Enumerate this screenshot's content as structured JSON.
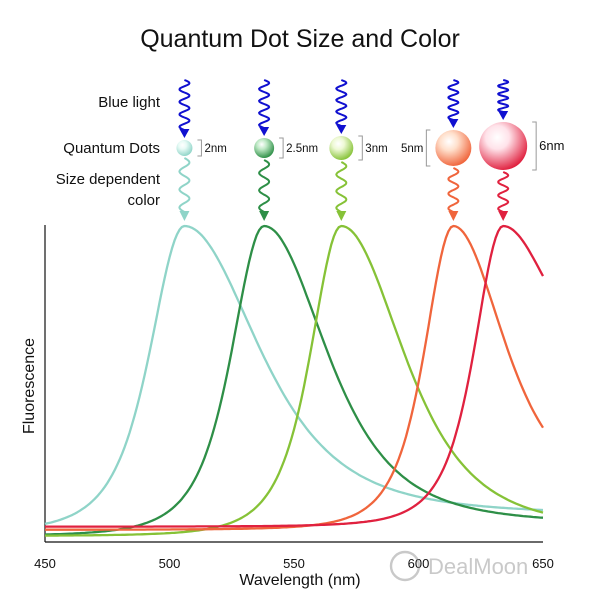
{
  "title": "Quantum Dot Size and Color",
  "labels": {
    "blue_light": "Blue light",
    "quantum_dots": "Quantum Dots",
    "size_dependent_1": "Size dependent",
    "size_dependent_2": "color"
  },
  "dots": [
    {
      "size_label": "2nm",
      "color": "#8fd4c8",
      "light": "#e8fbf6"
    },
    {
      "size_label": "2.5nm",
      "color": "#2e8f47",
      "light": "#bfe9c6"
    },
    {
      "size_label": "3nm",
      "color": "#86c237",
      "light": "#eef9d5"
    },
    {
      "size_label": "5nm",
      "color": "#f0653c",
      "light": "#ffe0cc"
    },
    {
      "size_label": "6nm",
      "color": "#e0213f",
      "light": "#ffe3ea"
    }
  ],
  "colors": {
    "excitation": "#1010d0",
    "axis": "#111111",
    "bracket": "#999999"
  },
  "chart_data": {
    "type": "line",
    "xlabel": "Wavelength (nm)",
    "ylabel": "Fluorescence",
    "xlim": [
      450,
      650
    ],
    "xticks": [
      "450",
      "500",
      "550",
      "600",
      "650"
    ],
    "series": [
      {
        "peak": 506,
        "width_left": 18,
        "width_right": 38,
        "baseline_left": 0.01,
        "baseline_right": 0.07,
        "color": "#8fd4c8"
      },
      {
        "peak": 538,
        "width_left": 17,
        "width_right": 32,
        "baseline_left": 0.0,
        "baseline_right": 0.04,
        "color": "#2e8f47"
      },
      {
        "peak": 569,
        "width_left": 16,
        "width_right": 32,
        "baseline_left": 0.0,
        "baseline_right": 0.02,
        "color": "#86c237"
      },
      {
        "peak": 614,
        "width_left": 15,
        "width_right": 26,
        "baseline_left": 0.02,
        "baseline_right": 0.12,
        "color": "#f0653c"
      },
      {
        "peak": 634,
        "width_left": 15,
        "width_right": 25,
        "baseline_left": 0.03,
        "baseline_right": 0.48,
        "color": "#e0213f"
      }
    ],
    "watermark": "DealMoon"
  }
}
